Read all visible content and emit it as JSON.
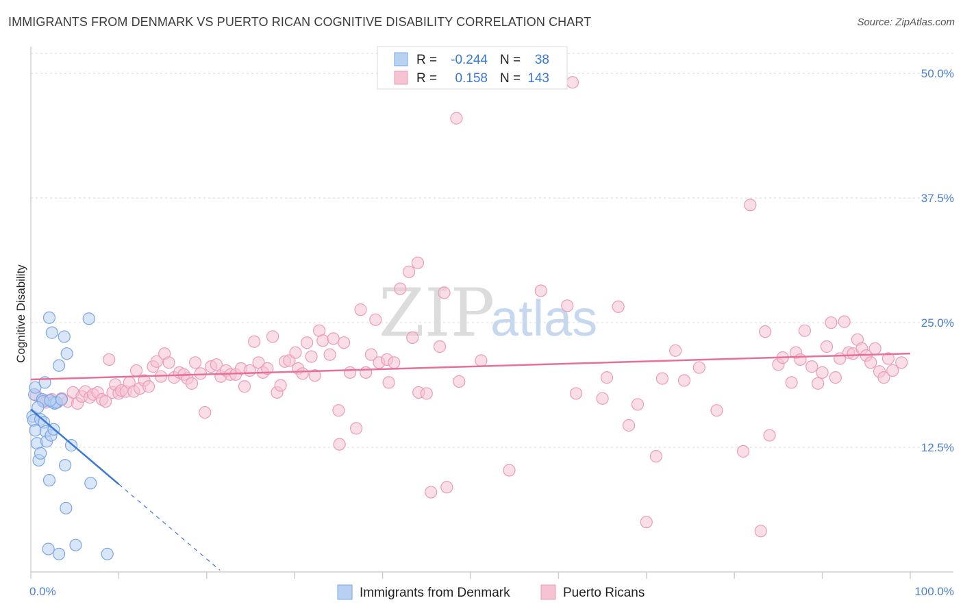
{
  "title": "IMMIGRANTS FROM DENMARK VS PUERTO RICAN COGNITIVE DISABILITY CORRELATION CHART",
  "source": "Source: ZipAtlas.com",
  "watermark": {
    "zip": "ZIP",
    "atlas": "atlas"
  },
  "legend": {
    "r_label": "R =",
    "n_label": "N =",
    "rows": [
      {
        "r": "-0.244",
        "n": "38"
      },
      {
        "r": "0.158",
        "n": "143"
      }
    ]
  },
  "colors": {
    "blue": "#3a78d8",
    "blue_fill": "#b8d1f3",
    "pink": "#e86f96",
    "pink_fill": "#f6c3d3",
    "axis_text": "#4a7fd4",
    "grid": "#d9d9d9"
  },
  "chart_data": {
    "type": "scatter",
    "title": "IMMIGRANTS FROM DENMARK VS PUERTO RICAN COGNITIVE DISABILITY CORRELATION CHART",
    "xlabel": "",
    "ylabel": "Cognitive Disability",
    "xlim": [
      0,
      100
    ],
    "ylim": [
      0,
      52
    ],
    "x_tick_labels": [
      "0.0%",
      "100.0%"
    ],
    "y_ticks": [
      12.5,
      25.0,
      37.5,
      50.0
    ],
    "y_tick_labels": [
      "12.5%",
      "25.0%",
      "37.5%",
      "50.0%"
    ],
    "grid": true,
    "legend_position": "bottom-center",
    "series": [
      {
        "name": "Immigrants from Denmark",
        "r": -0.244,
        "n": 38,
        "trend": {
          "x0": 0,
          "y0": 16.3,
          "x1": 10,
          "y1": 8.8,
          "dashed_to_x": 21.5
        },
        "points": [
          [
            0.2,
            15.6
          ],
          [
            0.3,
            15.2
          ],
          [
            0.4,
            17.8
          ],
          [
            0.5,
            18.5
          ],
          [
            0.5,
            14.2
          ],
          [
            0.7,
            12.9
          ],
          [
            0.9,
            11.2
          ],
          [
            1.1,
            15.3
          ],
          [
            1.1,
            11.9
          ],
          [
            1.3,
            17.3
          ],
          [
            1.5,
            15.0
          ],
          [
            1.6,
            19.0
          ],
          [
            1.7,
            14.1
          ],
          [
            1.8,
            13.1
          ],
          [
            2.0,
            2.3
          ],
          [
            2.1,
            9.2
          ],
          [
            2.1,
            25.5
          ],
          [
            2.3,
            13.7
          ],
          [
            2.4,
            24.0
          ],
          [
            2.5,
            17.0
          ],
          [
            2.6,
            14.3
          ],
          [
            2.7,
            16.9
          ],
          [
            2.9,
            17.0
          ],
          [
            3.2,
            20.7
          ],
          [
            3.2,
            1.8
          ],
          [
            3.5,
            17.3
          ],
          [
            3.8,
            23.6
          ],
          [
            3.9,
            10.7
          ],
          [
            4.0,
            6.4
          ],
          [
            4.1,
            21.9
          ],
          [
            4.6,
            12.7
          ],
          [
            5.1,
            2.7
          ],
          [
            6.6,
            25.4
          ],
          [
            6.8,
            8.9
          ],
          [
            8.7,
            1.8
          ],
          [
            1.4,
            17.1
          ],
          [
            0.8,
            16.5
          ],
          [
            2.2,
            17.2
          ]
        ]
      },
      {
        "name": "Puerto Ricans",
        "r": 0.158,
        "n": 143,
        "trend": {
          "x0": 0,
          "y0": 19.3,
          "x1": 100,
          "y1": 21.9
        },
        "points": [
          [
            0.6,
            17.7
          ],
          [
            1.3,
            17.3
          ],
          [
            1.7,
            17.0
          ],
          [
            2.0,
            17.2
          ],
          [
            2.4,
            17.3
          ],
          [
            3.0,
            17.0
          ],
          [
            3.5,
            17.4
          ],
          [
            4.2,
            17.1
          ],
          [
            4.8,
            18.0
          ],
          [
            5.3,
            16.9
          ],
          [
            5.8,
            17.6
          ],
          [
            6.2,
            18.1
          ],
          [
            6.7,
            17.5
          ],
          [
            7.1,
            17.8
          ],
          [
            7.6,
            18.0
          ],
          [
            8.1,
            17.3
          ],
          [
            8.5,
            17.1
          ],
          [
            8.9,
            21.3
          ],
          [
            9.3,
            18.0
          ],
          [
            9.6,
            18.8
          ],
          [
            10.0,
            17.9
          ],
          [
            10.3,
            18.2
          ],
          [
            10.8,
            18.1
          ],
          [
            11.2,
            19.0
          ],
          [
            11.7,
            18.1
          ],
          [
            12.0,
            20.2
          ],
          [
            12.4,
            18.4
          ],
          [
            12.9,
            19.2
          ],
          [
            13.4,
            18.6
          ],
          [
            13.9,
            20.6
          ],
          [
            14.3,
            21.1
          ],
          [
            14.8,
            19.6
          ],
          [
            15.2,
            21.9
          ],
          [
            15.7,
            21.0
          ],
          [
            16.3,
            19.5
          ],
          [
            16.9,
            20.0
          ],
          [
            17.4,
            19.8
          ],
          [
            17.8,
            19.4
          ],
          [
            18.3,
            18.9
          ],
          [
            18.7,
            21.0
          ],
          [
            19.3,
            19.9
          ],
          [
            19.8,
            16.0
          ],
          [
            20.5,
            20.6
          ],
          [
            21.1,
            20.8
          ],
          [
            21.6,
            19.6
          ],
          [
            22.2,
            20.2
          ],
          [
            22.7,
            19.8
          ],
          [
            23.3,
            19.8
          ],
          [
            23.9,
            20.4
          ],
          [
            24.3,
            18.6
          ],
          [
            24.9,
            20.2
          ],
          [
            25.4,
            23.1
          ],
          [
            25.9,
            21.0
          ],
          [
            26.4,
            20.0
          ],
          [
            26.9,
            20.4
          ],
          [
            27.5,
            23.6
          ],
          [
            28.0,
            18.0
          ],
          [
            28.4,
            18.7
          ],
          [
            28.9,
            21.1
          ],
          [
            29.4,
            21.2
          ],
          [
            30.1,
            22.0
          ],
          [
            30.4,
            20.4
          ],
          [
            30.9,
            19.9
          ],
          [
            31.4,
            23.0
          ],
          [
            31.9,
            21.6
          ],
          [
            32.3,
            19.7
          ],
          [
            32.8,
            24.2
          ],
          [
            33.2,
            23.2
          ],
          [
            34.0,
            21.8
          ],
          [
            34.4,
            23.4
          ],
          [
            35.0,
            16.2
          ],
          [
            35.1,
            12.8
          ],
          [
            35.6,
            23.0
          ],
          [
            36.3,
            20.0
          ],
          [
            37.0,
            14.4
          ],
          [
            37.5,
            26.3
          ],
          [
            38.1,
            20.0
          ],
          [
            38.7,
            21.8
          ],
          [
            39.2,
            25.3
          ],
          [
            39.6,
            21.0
          ],
          [
            40.5,
            21.3
          ],
          [
            40.7,
            19.0
          ],
          [
            41.3,
            21.0
          ],
          [
            42.0,
            28.4
          ],
          [
            43.0,
            30.1
          ],
          [
            43.4,
            23.5
          ],
          [
            44.0,
            31.0
          ],
          [
            44.1,
            18.0
          ],
          [
            45.0,
            17.9
          ],
          [
            45.5,
            8.0
          ],
          [
            46.5,
            22.6
          ],
          [
            47.0,
            28.0
          ],
          [
            47.3,
            8.5
          ],
          [
            48.4,
            45.5
          ],
          [
            48.7,
            19.1
          ],
          [
            51.2,
            21.2
          ],
          [
            54.4,
            10.2
          ],
          [
            58.0,
            28.2
          ],
          [
            61.0,
            26.7
          ],
          [
            61.6,
            49.1
          ],
          [
            62.0,
            17.9
          ],
          [
            65.0,
            17.4
          ],
          [
            65.5,
            19.5
          ],
          [
            66.8,
            26.6
          ],
          [
            68.0,
            14.7
          ],
          [
            69.0,
            16.8
          ],
          [
            71.1,
            11.6
          ],
          [
            71.8,
            19.4
          ],
          [
            73.3,
            22.2
          ],
          [
            74.3,
            19.2
          ],
          [
            76.0,
            20.5
          ],
          [
            78.0,
            16.2
          ],
          [
            81.0,
            12.1
          ],
          [
            81.8,
            36.8
          ],
          [
            83.0,
            4.1
          ],
          [
            83.5,
            24.1
          ],
          [
            84.0,
            13.7
          ],
          [
            85.0,
            20.8
          ],
          [
            85.5,
            21.5
          ],
          [
            86.5,
            19.0
          ],
          [
            87.0,
            22.0
          ],
          [
            87.5,
            21.3
          ],
          [
            88.0,
            24.2
          ],
          [
            88.8,
            20.6
          ],
          [
            89.5,
            18.9
          ],
          [
            90.0,
            20.0
          ],
          [
            90.5,
            22.6
          ],
          [
            91.0,
            25.0
          ],
          [
            91.5,
            19.5
          ],
          [
            92.0,
            21.4
          ],
          [
            92.5,
            25.1
          ],
          [
            93.0,
            22.0
          ],
          [
            93.5,
            21.9
          ],
          [
            94.0,
            23.3
          ],
          [
            94.5,
            22.4
          ],
          [
            95.0,
            21.7
          ],
          [
            95.5,
            21.0
          ],
          [
            96.0,
            22.4
          ],
          [
            96.5,
            20.1
          ],
          [
            97.0,
            19.5
          ],
          [
            97.5,
            21.4
          ],
          [
            98.0,
            20.2
          ],
          [
            99.0,
            21.0
          ],
          [
            70.0,
            5.0
          ]
        ]
      }
    ]
  },
  "bottom_legend": [
    "Immigrants from Denmark",
    "Puerto Ricans"
  ]
}
